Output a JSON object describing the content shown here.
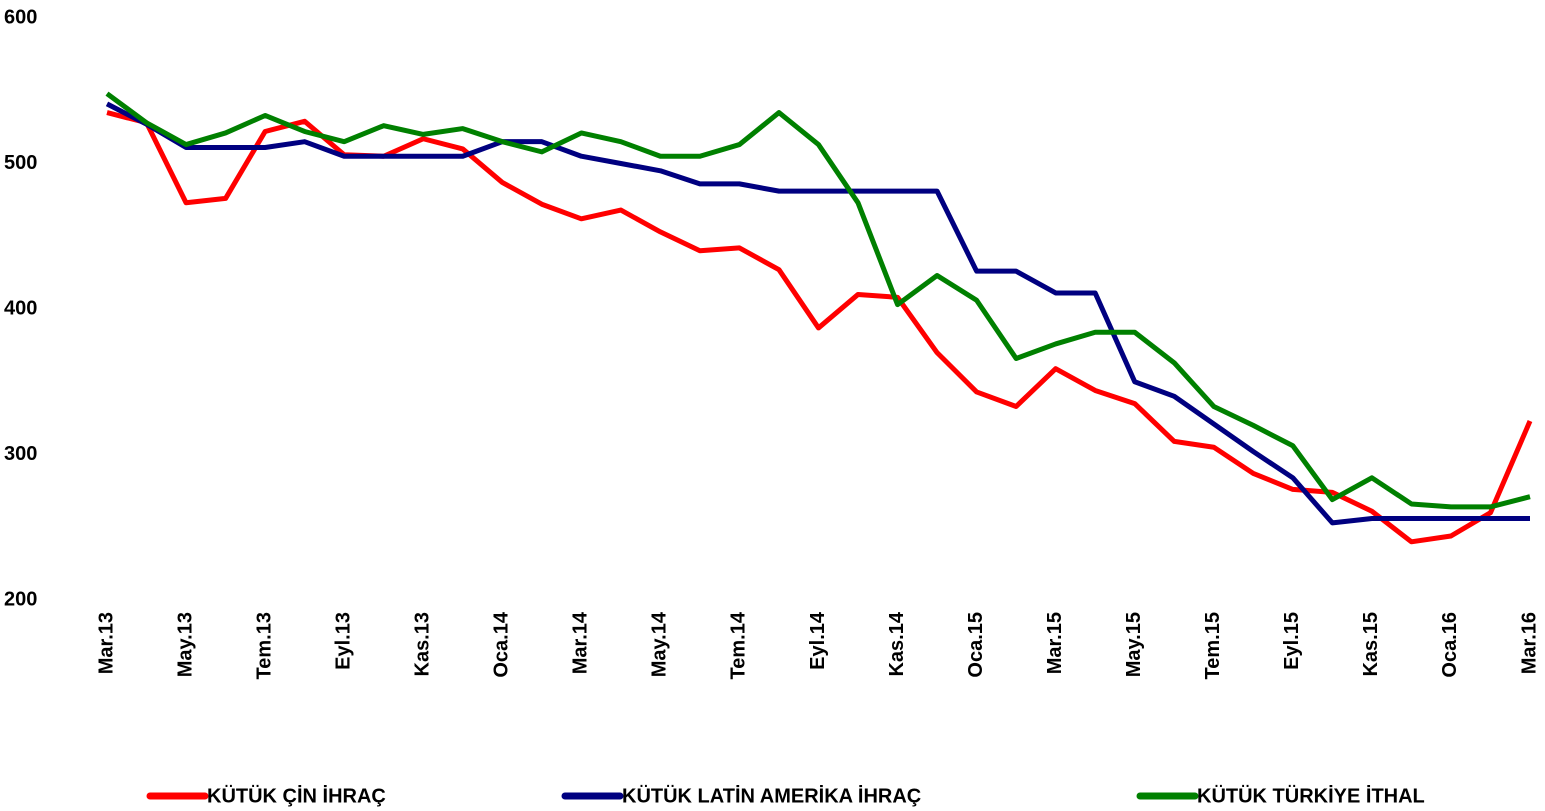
{
  "chart_data": {
    "type": "line",
    "categories": [
      "Mar.13",
      null,
      "May.13",
      null,
      "Tem.13",
      null,
      "Eyl.13",
      null,
      "Kas.13",
      null,
      "Oca.14",
      null,
      "Mar.14",
      null,
      "May.14",
      null,
      "Tem.14",
      null,
      "Eyl.14",
      null,
      "Kas.14",
      null,
      "Oca.15",
      null,
      "Mar.15",
      null,
      "May.15",
      null,
      "Tem.15",
      null,
      "Eyl.15",
      null,
      "Kas.15",
      null,
      "Oca.16",
      null,
      "Mar.16"
    ],
    "series": [
      {
        "name": "KÜTÜK ÇİN İHRAÇ",
        "color": "#ff0000",
        "values": [
          535,
          528,
          473,
          476,
          522,
          529,
          506,
          505,
          517,
          510,
          487,
          472,
          462,
          468,
          453,
          440,
          442,
          427,
          387,
          410,
          408,
          370,
          343,
          333,
          359,
          344,
          335,
          309,
          305,
          287,
          276,
          274,
          261,
          240,
          244,
          260,
          323
        ]
      },
      {
        "name": "KÜTÜK LATİN AMERİKA İHRAÇ",
        "color": "#000080",
        "values": [
          541,
          527,
          511,
          511,
          511,
          515,
          505,
          505,
          505,
          505,
          515,
          515,
          505,
          500,
          495,
          486,
          486,
          481,
          481,
          481,
          481,
          481,
          426,
          426,
          411,
          411,
          350,
          340,
          321,
          302,
          284,
          253,
          256,
          256,
          256,
          256,
          256
        ]
      },
      {
        "name": "KÜTÜK TÜRKİYE İTHAL",
        "color": "#008000",
        "values": [
          548,
          528,
          513,
          521,
          533,
          522,
          515,
          526,
          520,
          524,
          515,
          508,
          521,
          515,
          505,
          505,
          513,
          535,
          513,
          473,
          403,
          423,
          406,
          366,
          376,
          384,
          384,
          363,
          333,
          320,
          306,
          269,
          284,
          266,
          264,
          264,
          271
        ]
      }
    ],
    "ylim": [
      200,
      600
    ],
    "yticks": [
      200,
      300,
      400,
      500,
      600
    ],
    "grid": false,
    "legend": "bottom"
  }
}
